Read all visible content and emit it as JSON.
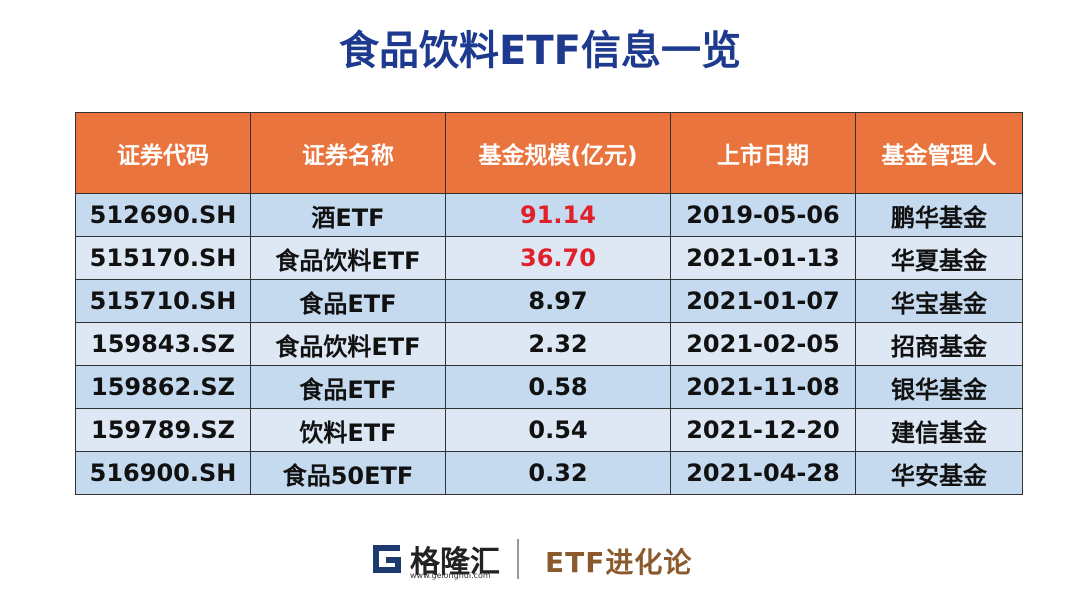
{
  "header": {
    "title": "食品饮料ETF信息一览"
  },
  "table": {
    "columns": [
      "证券代码",
      "证券名称",
      "基金规模(亿元)",
      "上市日期",
      "基金管理人"
    ],
    "rows": [
      [
        "512690.SH",
        "酒ETF",
        "91.14",
        "2019-05-06",
        "鹏华基金"
      ],
      [
        "515170.SH",
        "食品饮料ETF",
        "36.70",
        "2021-01-13",
        "华夏基金"
      ],
      [
        "515710.SH",
        "食品ETF",
        "8.97",
        "2021-01-07",
        "华宝基金"
      ],
      [
        "159843.SZ",
        "食品饮料ETF",
        "2.32",
        "2021-02-05",
        "招商基金"
      ],
      [
        "159862.SZ",
        "食品ETF",
        "0.58",
        "2021-11-08",
        "银华基金"
      ],
      [
        "159789.SZ",
        "饮料ETF",
        "0.54",
        "2021-12-20",
        "建信基金"
      ],
      [
        "516900.SH",
        "食品50ETF",
        "0.32",
        "2021-04-28",
        "华安基金"
      ]
    ]
  },
  "footer": {
    "logo_text": "格隆汇",
    "logo_url": "www.gelonghui.com",
    "brand": "ETF进化论"
  }
}
